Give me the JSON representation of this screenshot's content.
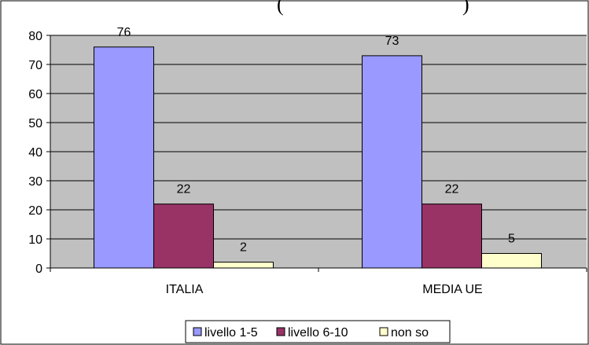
{
  "chart_data": {
    "type": "bar",
    "title_fragment": "(",
    "title_fragment_end": ")",
    "categories": [
      "ITALIA",
      "MEDIA UE"
    ],
    "series": [
      {
        "name": "livello 1-5",
        "values": [
          76,
          73
        ],
        "color": "#9999ff"
      },
      {
        "name": "livello 6-10",
        "values": [
          22,
          22
        ],
        "color": "#993366"
      },
      {
        "name": "non so",
        "values": [
          2,
          5
        ],
        "color": "#ffffcc"
      }
    ],
    "ylim": [
      0,
      80
    ],
    "yticks": [
      0,
      10,
      20,
      30,
      40,
      50,
      60,
      70,
      80
    ],
    "grid": true,
    "legend_position": "bottom",
    "plot_background": "#c0c0c0"
  }
}
